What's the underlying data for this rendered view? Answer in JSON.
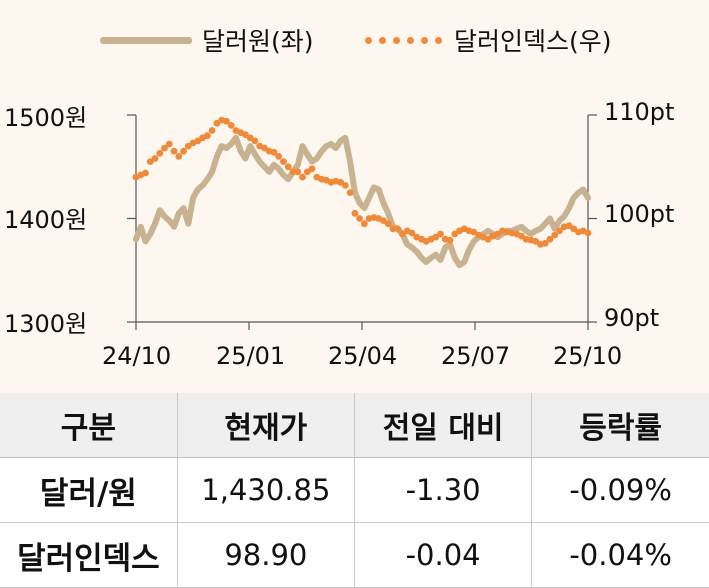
{
  "chart_data": {
    "type": "line",
    "x_tick_labels": [
      "24/10",
      "25/01",
      "25/04",
      "25/07",
      "25/10"
    ],
    "y_left": {
      "ticks": [
        1300,
        1400,
        1500
      ],
      "tick_labels": [
        "1300원",
        "1400원",
        "1500원"
      ],
      "range": [
        1300,
        1500
      ]
    },
    "y_right": {
      "ticks": [
        90,
        100,
        110
      ],
      "tick_labels": [
        "90pt",
        "100pt",
        "110pt"
      ],
      "range": [
        90,
        110
      ]
    },
    "grid": false,
    "legend_position": "top",
    "series": [
      {
        "name": "달러원(좌)",
        "axis": "left",
        "style": "line",
        "color": "#c8b28f",
        "values": [
          1380,
          1392,
          1378,
          1385,
          1395,
          1408,
          1402,
          1398,
          1392,
          1405,
          1410,
          1395,
          1420,
          1428,
          1432,
          1438,
          1445,
          1460,
          1470,
          1468,
          1472,
          1478,
          1465,
          1458,
          1470,
          1462,
          1455,
          1450,
          1445,
          1452,
          1448,
          1442,
          1438,
          1445,
          1452,
          1470,
          1462,
          1455,
          1458,
          1465,
          1470,
          1472,
          1468,
          1475,
          1478,
          1455,
          1425,
          1415,
          1410,
          1420,
          1430,
          1428,
          1415,
          1405,
          1392,
          1390,
          1385,
          1375,
          1372,
          1368,
          1362,
          1358,
          1362,
          1365,
          1360,
          1372,
          1375,
          1362,
          1355,
          1358,
          1370,
          1378,
          1382,
          1385,
          1388,
          1385,
          1382,
          1385,
          1388,
          1388,
          1390,
          1392,
          1388,
          1385,
          1388,
          1390,
          1395,
          1400,
          1390,
          1398,
          1402,
          1410,
          1420,
          1425,
          1428,
          1420
        ]
      },
      {
        "name": "달러인덱스(우)",
        "axis": "right",
        "style": "dots",
        "color": "#ef8a3a",
        "values": [
          104.0,
          104.2,
          104.4,
          105.5,
          105.8,
          106.3,
          106.8,
          107.2,
          106.5,
          106.0,
          106.5,
          107.0,
          107.3,
          107.5,
          107.8,
          108.0,
          108.5,
          109.2,
          109.5,
          109.4,
          109.0,
          108.5,
          108.3,
          108.1,
          107.8,
          107.5,
          107.0,
          106.8,
          106.5,
          106.4,
          106.0,
          105.5,
          105.0,
          104.5,
          104.5,
          104.0,
          104.5,
          104.8,
          104.0,
          103.8,
          103.7,
          103.5,
          103.6,
          103.5,
          103.2,
          102.5,
          100.5,
          100.0,
          99.5,
          100.0,
          100.1,
          100.0,
          99.8,
          99.5,
          99.0,
          99.0,
          98.5,
          98.8,
          98.6,
          98.2,
          98.0,
          97.8,
          98.0,
          98.2,
          98.5,
          98.0,
          97.9,
          98.5,
          98.8,
          99.0,
          98.8,
          98.7,
          98.4,
          98.2,
          98.0,
          98.3,
          98.5,
          98.8,
          98.7,
          98.6,
          98.5,
          98.3,
          98.0,
          97.9,
          97.8,
          97.5,
          97.6,
          98.0,
          98.4,
          98.8,
          99.2,
          99.3,
          99.0,
          98.7,
          98.8,
          98.6
        ]
      }
    ]
  },
  "table": {
    "headers": [
      "구분",
      "현재가",
      "전일 대비",
      "등락률"
    ],
    "rows": [
      [
        "달러/원",
        "1,430.85",
        "-1.30",
        "-0.09%"
      ],
      [
        "달러인덱스",
        "98.90",
        "-0.04",
        "-0.04%"
      ]
    ]
  }
}
